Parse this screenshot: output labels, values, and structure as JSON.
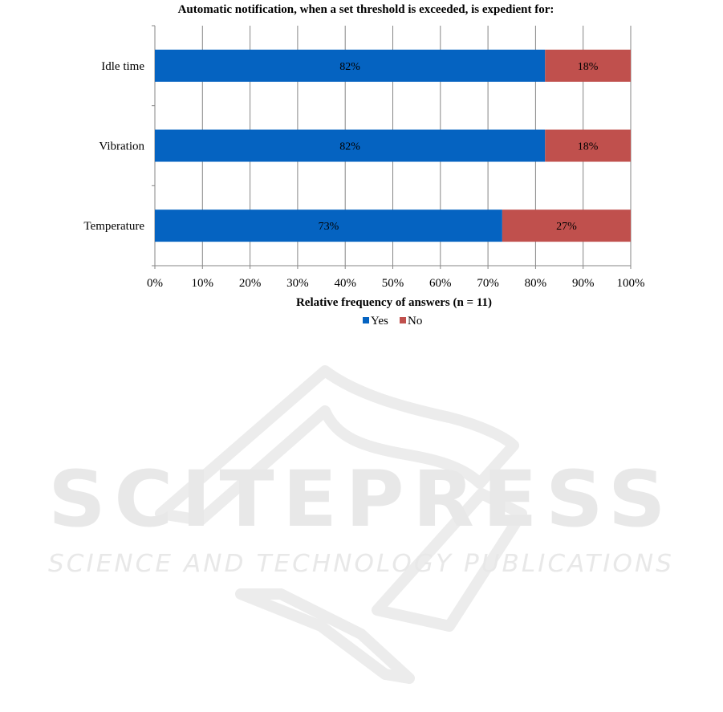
{
  "chart_data": {
    "type": "bar",
    "orientation": "horizontal",
    "stacked": true,
    "title": "Automatic notification, when a set threshold is exceeded, is expedient for:",
    "xlabel": "Relative frequency of answers (n = 11)",
    "ylabel": "",
    "categories": [
      "Idle time",
      "Vibration",
      "Temperature"
    ],
    "series": [
      {
        "name": "Yes",
        "values": [
          82,
          82,
          73
        ],
        "labels": [
          "82%",
          "82%",
          "73%"
        ],
        "color": "#0563C1"
      },
      {
        "name": "No",
        "values": [
          18,
          18,
          27
        ],
        "labels": [
          "18%",
          "18%",
          "27%"
        ],
        "color": "#C0504D"
      }
    ],
    "xlim": [
      0,
      100
    ],
    "x_ticks": [
      "0%",
      "10%",
      "20%",
      "30%",
      "40%",
      "50%",
      "60%",
      "70%",
      "80%",
      "90%",
      "100%"
    ],
    "grid": "vertical",
    "legend_position": "bottom"
  },
  "watermark": {
    "brand": "SCITEPRESS",
    "tagline": "SCIENCE AND TECHNOLOGY PUBLICATIONS"
  }
}
